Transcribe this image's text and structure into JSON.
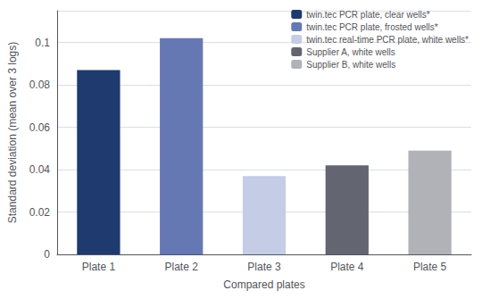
{
  "chart_data": {
    "type": "bar",
    "categories": [
      "Plate 1",
      "Plate 2",
      "Plate 3",
      "Plate 4",
      "Plate 5"
    ],
    "series": [
      {
        "name": "twin.tec PCR plate, clear wells*",
        "color": "#1e3a6e",
        "values": [
          0.087,
          null,
          null,
          null,
          null
        ]
      },
      {
        "name": "twin.tec PCR plate, frosted wells*",
        "color": "#6678b4",
        "values": [
          null,
          0.102,
          null,
          null,
          null
        ]
      },
      {
        "name": "twin.tec real-time PCR plate, white wells*",
        "color": "#c5cce6",
        "values": [
          null,
          null,
          0.037,
          null,
          null
        ]
      },
      {
        "name": "Supplier A, white wells",
        "color": "#636670",
        "values": [
          null,
          null,
          null,
          0.042,
          null
        ]
      },
      {
        "name": "Supplier B, white wells",
        "color": "#b0b2b8",
        "values": [
          null,
          null,
          null,
          null,
          0.049
        ]
      }
    ],
    "xlabel": "Compared plates",
    "ylabel": "Standard deviation (mean over 3 logs)",
    "ylim": [
      0,
      0.115
    ],
    "yticks": [
      0,
      0.02,
      0.04,
      0.06,
      0.08,
      0.1
    ],
    "grid": true,
    "legend": "upper right"
  }
}
